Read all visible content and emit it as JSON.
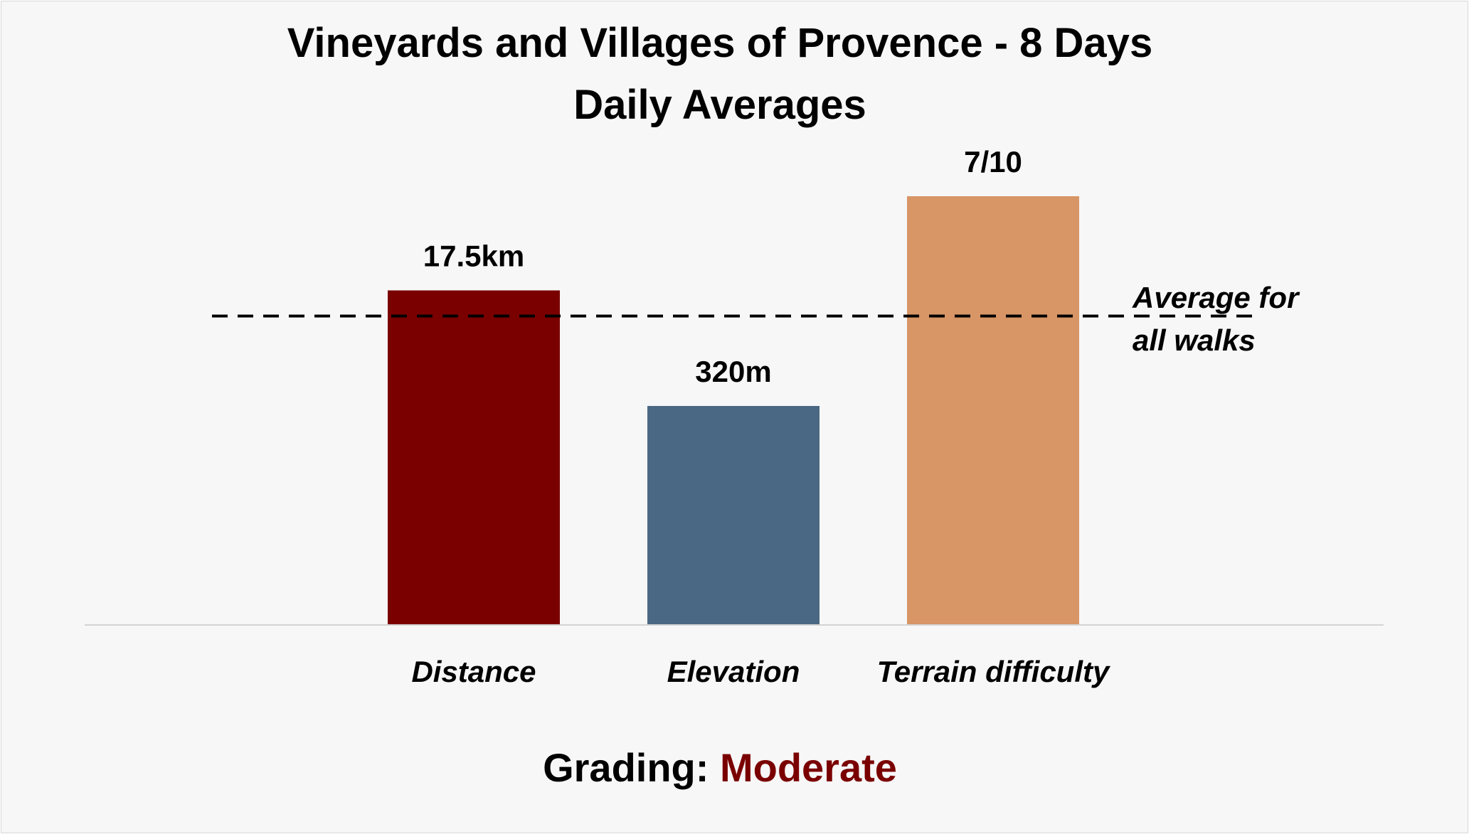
{
  "chart_data": {
    "type": "bar",
    "title_lines": [
      "Vineyards and Villages of Provence - 8 Days",
      "Daily Averages"
    ],
    "categories": [
      "Distance",
      "Elevation",
      "Terrain difficulty"
    ],
    "values": [
      0.78,
      0.51,
      1.0
    ],
    "value_labels": [
      "17.5km",
      "320m",
      "7/10"
    ],
    "colors": [
      "#7a0000",
      "#4a6884",
      "#d89565"
    ],
    "reference_line": {
      "value": 0.72,
      "style": "dashed",
      "label_lines": [
        "Average for",
        "all walks"
      ]
    },
    "ylim": [
      0,
      1
    ],
    "grid": false,
    "legend": "none"
  },
  "grading": {
    "label": "Grading:",
    "value": "Moderate",
    "label_color": "#000000",
    "value_color": "#7a0000"
  }
}
